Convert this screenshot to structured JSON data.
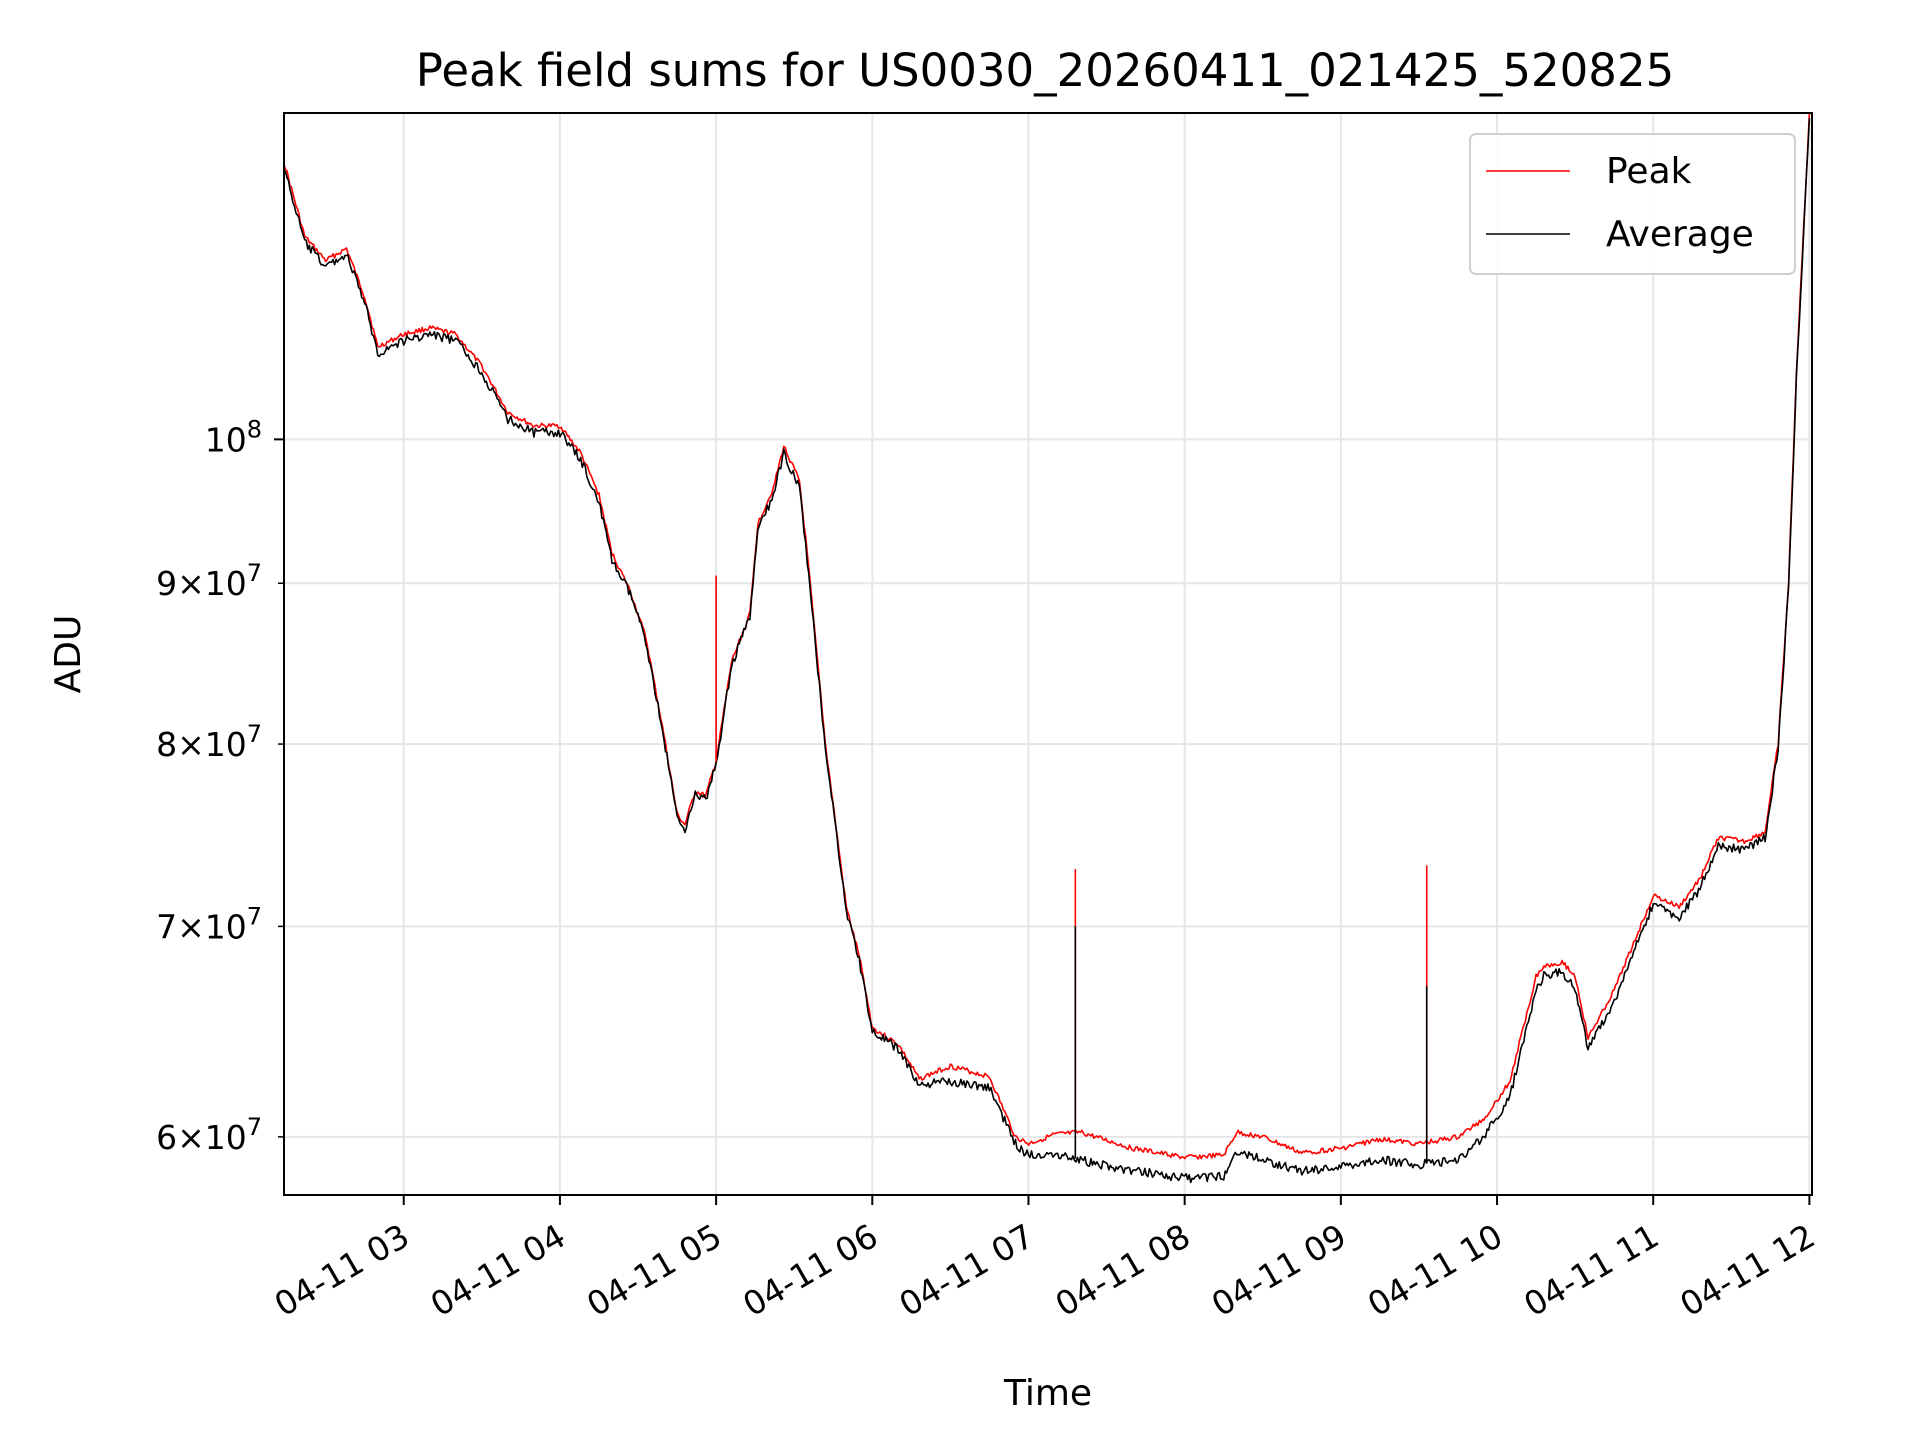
{
  "chart_data": {
    "type": "line",
    "title": "Peak field sums for US0030_20260411_021425_520825",
    "xlabel": "Time",
    "ylabel": "ADU",
    "x_axis": {
      "kind": "time",
      "range": [
        "2026-04-11 02:14",
        "2026-04-11 12:01"
      ],
      "ticks": [
        "04-11 03",
        "04-11 04",
        "04-11 05",
        "04-11 06",
        "04-11 07",
        "04-11 08",
        "04-11 09",
        "04-11 10",
        "04-11 11",
        "04-11 12"
      ],
      "tick_times": [
        "2026-04-11 03:00",
        "2026-04-11 04:00",
        "2026-04-11 05:00",
        "2026-04-11 06:00",
        "2026-04-11 07:00",
        "2026-04-11 08:00",
        "2026-04-11 09:00",
        "2026-04-11 10:00",
        "2026-04-11 11:00",
        "2026-04-11 12:00"
      ]
    },
    "y_axis": {
      "scale": "log",
      "range": [
        57500000,
        127000000
      ],
      "major_ticks": [
        100000000
      ],
      "major_labels": [
        "10^8"
      ],
      "minor_ticks": [
        60000000,
        70000000,
        80000000,
        90000000
      ],
      "minor_labels": [
        "6×10^7",
        "7×10^7",
        "8×10^7",
        "9×10^7"
      ]
    },
    "grid": true,
    "legend": {
      "placement": "upper right",
      "entries": [
        "Peak",
        "Average"
      ]
    },
    "series": [
      {
        "name": "Peak",
        "color": "#ff0000",
        "points": [
          [
            "2026-04-11 02:14",
            122500000
          ],
          [
            "2026-04-11 02:22",
            116000000
          ],
          [
            "2026-04-11 02:30",
            114000000
          ],
          [
            "2026-04-11 02:38",
            115000000
          ],
          [
            "2026-04-11 02:45",
            111000000
          ],
          [
            "2026-04-11 02:50",
            107000000
          ],
          [
            "2026-04-11 03:00",
            108000000
          ],
          [
            "2026-04-11 03:10",
            108500000
          ],
          [
            "2026-04-11 03:20",
            108000000
          ],
          [
            "2026-04-11 03:30",
            105500000
          ],
          [
            "2026-04-11 03:40",
            102000000
          ],
          [
            "2026-04-11 03:50",
            101000000
          ],
          [
            "2026-04-11 04:00",
            101000000
          ],
          [
            "2026-04-11 04:08",
            99000000
          ],
          [
            "2026-04-11 04:15",
            96000000
          ],
          [
            "2026-04-11 04:20",
            92000000
          ],
          [
            "2026-04-11 04:27",
            89500000
          ],
          [
            "2026-04-11 04:33",
            86500000
          ],
          [
            "2026-04-11 04:40",
            80500000
          ],
          [
            "2026-04-11 04:45",
            76000000
          ],
          [
            "2026-04-11 04:48",
            75400000
          ],
          [
            "2026-04-11 04:52",
            77300000
          ],
          [
            "2026-04-11 04:56",
            77000000
          ],
          [
            "2026-04-11 05:00",
            79000000
          ],
          [
            "2026-04-11 05:06",
            85000000
          ],
          [
            "2026-04-11 05:13",
            88000000
          ],
          [
            "2026-04-11 05:16",
            94000000
          ],
          [
            "2026-04-11 05:22",
            96500000
          ],
          [
            "2026-04-11 05:26",
            99500000
          ],
          [
            "2026-04-11 05:32",
            97000000
          ],
          [
            "2026-04-11 05:35",
            92000000
          ],
          [
            "2026-04-11 05:42",
            80000000
          ],
          [
            "2026-04-11 05:50",
            71000000
          ],
          [
            "2026-04-11 05:55",
            68500000
          ],
          [
            "2026-04-11 06:00",
            65000000
          ],
          [
            "2026-04-11 06:10",
            64200000
          ],
          [
            "2026-04-11 06:18",
            62600000
          ],
          [
            "2026-04-11 06:30",
            63200000
          ],
          [
            "2026-04-11 06:45",
            62700000
          ],
          [
            "2026-04-11 06:55",
            60000000
          ],
          [
            "2026-04-11 07:00",
            59700000
          ],
          [
            "2026-04-11 07:10",
            60100000
          ],
          [
            "2026-04-11 07:20",
            60200000
          ],
          [
            "2026-04-11 07:40",
            59500000
          ],
          [
            "2026-04-11 07:50",
            59300000
          ],
          [
            "2026-04-11 08:00",
            59100000
          ],
          [
            "2026-04-11 08:15",
            59200000
          ],
          [
            "2026-04-11 08:20",
            60200000
          ],
          [
            "2026-04-11 08:30",
            60000000
          ],
          [
            "2026-04-11 08:45",
            59300000
          ],
          [
            "2026-04-11 09:00",
            59500000
          ],
          [
            "2026-04-11 09:15",
            59900000
          ],
          [
            "2026-04-11 09:30",
            59700000
          ],
          [
            "2026-04-11 09:45",
            60000000
          ],
          [
            "2026-04-11 09:55",
            60800000
          ],
          [
            "2026-04-11 10:05",
            62500000
          ],
          [
            "2026-04-11 10:15",
            67500000
          ],
          [
            "2026-04-11 10:18",
            68000000
          ],
          [
            "2026-04-11 10:25",
            68200000
          ],
          [
            "2026-04-11 10:30",
            67500000
          ],
          [
            "2026-04-11 10:35",
            64500000
          ],
          [
            "2026-04-11 10:45",
            66800000
          ],
          [
            "2026-04-11 11:00",
            71600000
          ],
          [
            "2026-04-11 11:10",
            71000000
          ],
          [
            "2026-04-11 11:18",
            72500000
          ],
          [
            "2026-04-11 11:25",
            74700000
          ],
          [
            "2026-04-11 11:35",
            74500000
          ],
          [
            "2026-04-11 11:43",
            75000000
          ],
          [
            "2026-04-11 11:48",
            80000000
          ],
          [
            "2026-04-11 11:52",
            90000000
          ],
          [
            "2026-04-11 11:55",
            105000000
          ],
          [
            "2026-04-11 12:00",
            127000000
          ]
        ]
      },
      {
        "name": "Average",
        "color": "#000000",
        "points": [
          [
            "2026-04-11 02:14",
            122000000
          ],
          [
            "2026-04-11 02:22",
            115500000
          ],
          [
            "2026-04-11 02:30",
            113500000
          ],
          [
            "2026-04-11 02:38",
            114500000
          ],
          [
            "2026-04-11 02:45",
            110500000
          ],
          [
            "2026-04-11 02:50",
            106500000
          ],
          [
            "2026-04-11 03:00",
            107500000
          ],
          [
            "2026-04-11 03:10",
            108000000
          ],
          [
            "2026-04-11 03:20",
            107500000
          ],
          [
            "2026-04-11 03:30",
            105000000
          ],
          [
            "2026-04-11 03:40",
            101500000
          ],
          [
            "2026-04-11 03:50",
            100500000
          ],
          [
            "2026-04-11 04:00",
            100500000
          ],
          [
            "2026-04-11 04:08",
            98500000
          ],
          [
            "2026-04-11 04:15",
            95500000
          ],
          [
            "2026-04-11 04:20",
            91500000
          ],
          [
            "2026-04-11 04:27",
            89300000
          ],
          [
            "2026-04-11 04:33",
            86300000
          ],
          [
            "2026-04-11 04:40",
            80300000
          ],
          [
            "2026-04-11 04:45",
            75800000
          ],
          [
            "2026-04-11 04:48",
            75200000
          ],
          [
            "2026-04-11 04:52",
            77100000
          ],
          [
            "2026-04-11 04:56",
            76800000
          ],
          [
            "2026-04-11 05:00",
            78800000
          ],
          [
            "2026-04-11 05:06",
            84800000
          ],
          [
            "2026-04-11 05:13",
            87800000
          ],
          [
            "2026-04-11 05:16",
            93500000
          ],
          [
            "2026-04-11 05:22",
            96000000
          ],
          [
            "2026-04-11 05:26",
            99000000
          ],
          [
            "2026-04-11 05:32",
            96500000
          ],
          [
            "2026-04-11 05:35",
            91500000
          ],
          [
            "2026-04-11 05:42",
            79800000
          ],
          [
            "2026-04-11 05:50",
            70800000
          ],
          [
            "2026-04-11 05:55",
            68300000
          ],
          [
            "2026-04-11 06:00",
            64800000
          ],
          [
            "2026-04-11 06:10",
            64000000
          ],
          [
            "2026-04-11 06:18",
            62300000
          ],
          [
            "2026-04-11 06:30",
            62500000
          ],
          [
            "2026-04-11 06:45",
            62200000
          ],
          [
            "2026-04-11 06:55",
            59700000
          ],
          [
            "2026-04-11 07:00",
            59200000
          ],
          [
            "2026-04-11 07:10",
            59300000
          ],
          [
            "2026-04-11 07:20",
            59000000
          ],
          [
            "2026-04-11 07:40",
            58500000
          ],
          [
            "2026-04-11 07:50",
            58400000
          ],
          [
            "2026-04-11 08:00",
            58200000
          ],
          [
            "2026-04-11 08:15",
            58300000
          ],
          [
            "2026-04-11 08:20",
            59400000
          ],
          [
            "2026-04-11 08:30",
            59000000
          ],
          [
            "2026-04-11 08:45",
            58500000
          ],
          [
            "2026-04-11 09:00",
            58700000
          ],
          [
            "2026-04-11 09:15",
            59000000
          ],
          [
            "2026-04-11 09:30",
            58800000
          ],
          [
            "2026-04-11 09:45",
            59000000
          ],
          [
            "2026-04-11 09:55",
            60000000
          ],
          [
            "2026-04-11 10:05",
            61800000
          ],
          [
            "2026-04-11 10:15",
            66800000
          ],
          [
            "2026-04-11 10:18",
            67500000
          ],
          [
            "2026-04-11 10:25",
            67700000
          ],
          [
            "2026-04-11 10:30",
            66900000
          ],
          [
            "2026-04-11 10:35",
            64000000
          ],
          [
            "2026-04-11 10:45",
            66200000
          ],
          [
            "2026-04-11 11:00",
            71200000
          ],
          [
            "2026-04-11 11:10",
            70400000
          ],
          [
            "2026-04-11 11:18",
            72000000
          ],
          [
            "2026-04-11 11:25",
            74300000
          ],
          [
            "2026-04-11 11:35",
            74000000
          ],
          [
            "2026-04-11 11:43",
            74700000
          ],
          [
            "2026-04-11 11:48",
            79700000
          ],
          [
            "2026-04-11 11:52",
            89700000
          ],
          [
            "2026-04-11 11:55",
            104500000
          ],
          [
            "2026-04-11 12:00",
            126500000
          ]
        ]
      }
    ],
    "spikes": [
      {
        "series": "Peak",
        "time": "2026-04-11 05:00",
        "value": 90500000
      },
      {
        "series": "Peak",
        "time": "2026-04-11 07:18",
        "value": 73000000
      },
      {
        "series": "Average",
        "time": "2026-04-11 07:18",
        "value": 70000000
      },
      {
        "series": "Peak",
        "time": "2026-04-11 09:33",
        "value": 73200000
      },
      {
        "series": "Average",
        "time": "2026-04-11 09:33",
        "value": 67000000
      }
    ]
  }
}
